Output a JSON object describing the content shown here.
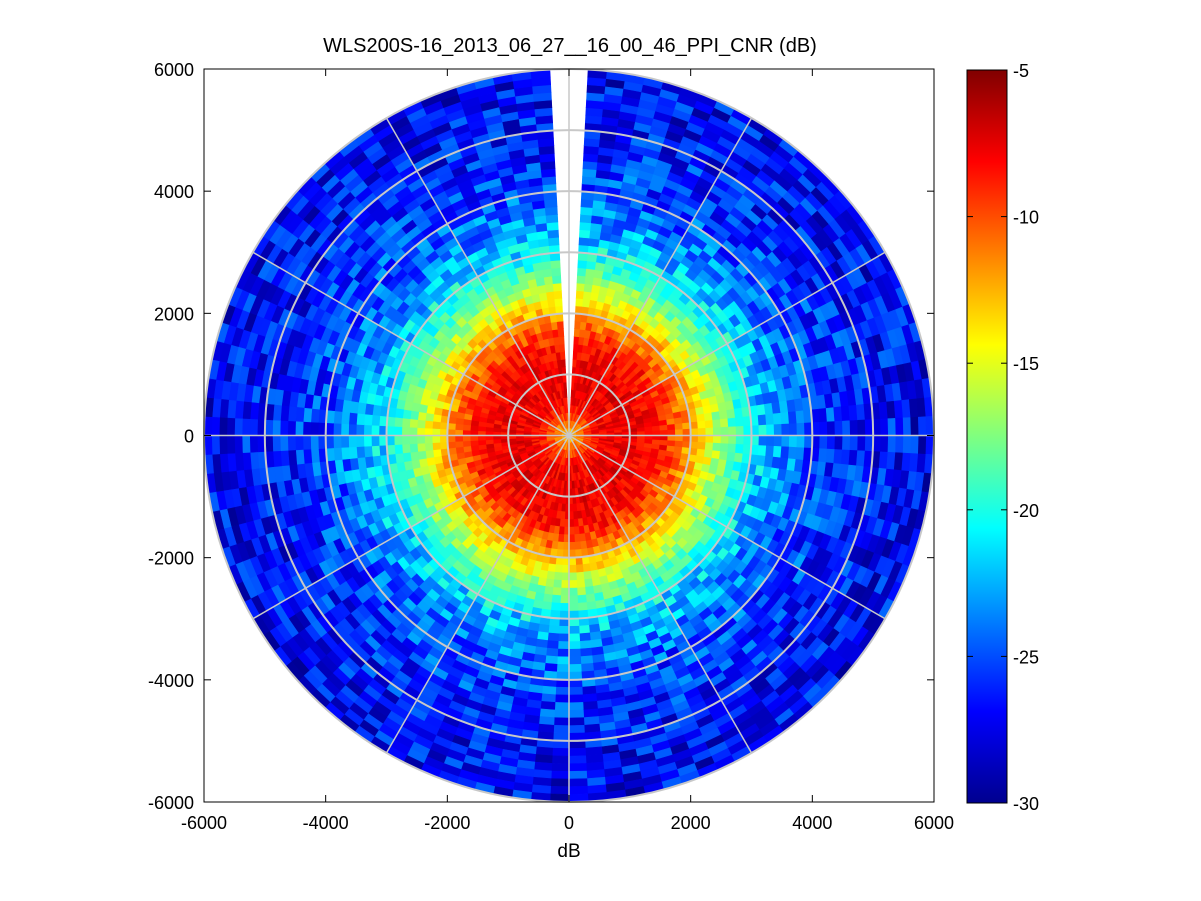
{
  "chart_data": {
    "type": "heatmap",
    "subtype": "polar-ppi",
    "title": "WLS200S-16_2013_06_27__16_00_46_PPI_CNR (dB)",
    "xlabel": "dB",
    "ylabel": "",
    "xlim": [
      -6000,
      6000
    ],
    "ylim": [
      -6000,
      6000
    ],
    "x_ticks": [
      -6000,
      -4000,
      -2000,
      0,
      2000,
      4000,
      6000
    ],
    "y_ticks": [
      6000,
      4000,
      2000,
      0,
      -2000,
      -4000,
      -6000
    ],
    "x_tick_labels": [
      "-6000",
      "-4000",
      "-2000",
      "0",
      "2000",
      "4000",
      "6000"
    ],
    "y_tick_labels": [
      "6000",
      "4000",
      "2000",
      "0",
      "-2000",
      "-4000",
      "-6000"
    ],
    "max_range": 6000,
    "range_rings": [
      1000,
      2000,
      3000,
      4000,
      5000
    ],
    "spoke_angle_step_deg": 30,
    "missing_sector_deg": [
      -4,
      4
    ],
    "radial_profile": {
      "range": [
        0,
        500,
        1000,
        1500,
        2000,
        2500,
        3000,
        3500,
        4000,
        5000,
        6000
      ],
      "cnr_db": [
        -13,
        -8,
        -7.5,
        -8.5,
        -12,
        -17,
        -21,
        -23.5,
        -25,
        -26.5,
        -27
      ]
    },
    "colorbar": {
      "colormap": "jet",
      "range": [
        -30,
        -5
      ],
      "ticks": [
        -5,
        -10,
        -15,
        -20,
        -25,
        -30
      ],
      "tick_labels": [
        "-5",
        "-10",
        "-15",
        "-20",
        "-25",
        "-30"
      ]
    },
    "grid": true
  }
}
